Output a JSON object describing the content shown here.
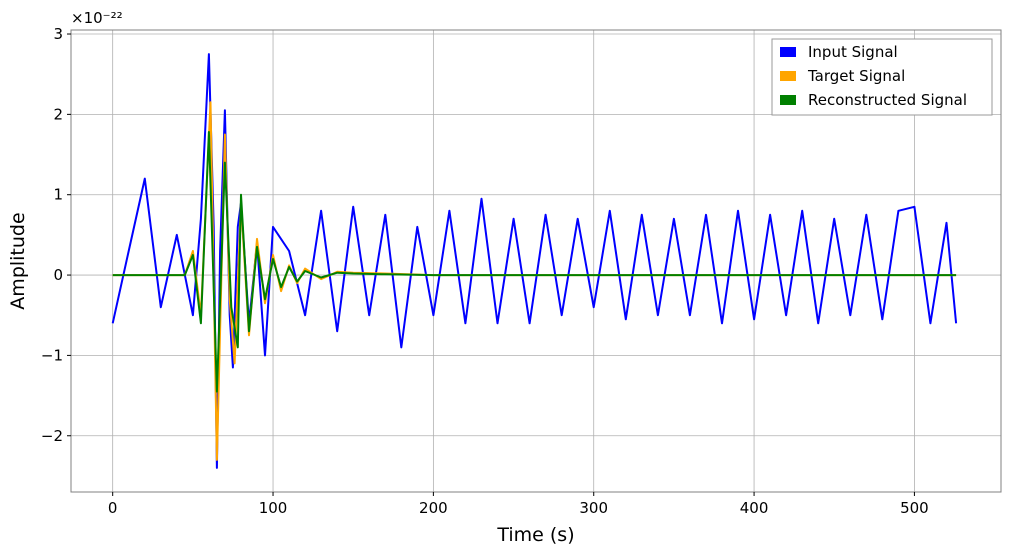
{
  "chart_data": {
    "type": "line",
    "xlabel": "Time (s)",
    "ylabel": "Amplitude",
    "offset_label": "×10⁻²²",
    "xlim": [
      -26,
      554
    ],
    "ylim": [
      -2.7,
      3.05
    ],
    "x_ticks": [
      0,
      100,
      200,
      300,
      400,
      500
    ],
    "x_tick_labels": [
      "0",
      "100",
      "200",
      "300",
      "400",
      "500"
    ],
    "y_ticks": [
      -2,
      -1,
      0,
      1,
      2,
      3
    ],
    "y_tick_labels": [
      "−2",
      "−1",
      "0",
      "1",
      "2",
      "3"
    ],
    "grid": true,
    "legend_position": "top-right",
    "series": [
      {
        "name": "Input Signal",
        "color": "#0000ff",
        "x": [
          0,
          10,
          20,
          30,
          40,
          50,
          55,
          60,
          63,
          65,
          67,
          70,
          73,
          75,
          78,
          80,
          85,
          90,
          95,
          100,
          110,
          120,
          130,
          140,
          150,
          160,
          170,
          180,
          190,
          200,
          210,
          220,
          230,
          240,
          250,
          260,
          270,
          280,
          290,
          300,
          310,
          320,
          330,
          340,
          350,
          360,
          370,
          380,
          390,
          400,
          410,
          420,
          430,
          440,
          450,
          460,
          470,
          480,
          490,
          500,
          510,
          520,
          526
        ],
        "values": [
          -0.6,
          0.3,
          1.2,
          -0.4,
          0.5,
          -0.5,
          0.7,
          2.75,
          0.6,
          -2.4,
          0.3,
          2.05,
          -0.5,
          -1.15,
          0.6,
          0.9,
          -0.6,
          0.4,
          -1.0,
          0.6,
          0.3,
          -0.5,
          0.8,
          -0.7,
          0.85,
          -0.5,
          0.75,
          -0.9,
          0.6,
          -0.5,
          0.8,
          -0.6,
          0.95,
          -0.6,
          0.7,
          -0.6,
          0.75,
          -0.5,
          0.7,
          -0.4,
          0.8,
          -0.55,
          0.75,
          -0.5,
          0.7,
          -0.5,
          0.75,
          -0.6,
          0.8,
          -0.55,
          0.75,
          -0.5,
          0.8,
          -0.6,
          0.7,
          -0.5,
          0.75,
          -0.55,
          0.8,
          0.85,
          -0.6,
          0.65,
          -0.6
        ]
      },
      {
        "name": "Target Signal",
        "color": "#ffa500",
        "x": [
          0,
          45,
          50,
          55,
          61,
          65,
          70,
          73,
          76,
          80,
          85,
          90,
          95,
          100,
          105,
          110,
          115,
          120,
          130,
          140,
          150,
          170,
          200,
          300,
          400,
          526
        ],
        "values": [
          0.0,
          0.0,
          0.3,
          -0.5,
          2.15,
          -2.3,
          1.75,
          -0.3,
          -1.1,
          0.9,
          -0.75,
          0.45,
          -0.35,
          0.25,
          -0.2,
          0.12,
          -0.1,
          0.08,
          -0.05,
          0.04,
          0.03,
          0.02,
          0.0,
          0.0,
          0.0,
          0.0
        ]
      },
      {
        "name": "Reconstructed Signal",
        "color": "#008000",
        "x": [
          0,
          45,
          50,
          55,
          60,
          65,
          70,
          74,
          78,
          80,
          85,
          90,
          95,
          100,
          105,
          110,
          115,
          120,
          130,
          140,
          150,
          170,
          200,
          300,
          400,
          526
        ],
        "values": [
          0.0,
          0.0,
          0.25,
          -0.6,
          1.78,
          -1.45,
          1.4,
          -0.4,
          -0.9,
          1.0,
          -0.7,
          0.35,
          -0.3,
          0.2,
          -0.15,
          0.1,
          -0.08,
          0.05,
          -0.03,
          0.03,
          0.02,
          0.01,
          0.0,
          0.0,
          0.0,
          0.0
        ]
      }
    ]
  }
}
